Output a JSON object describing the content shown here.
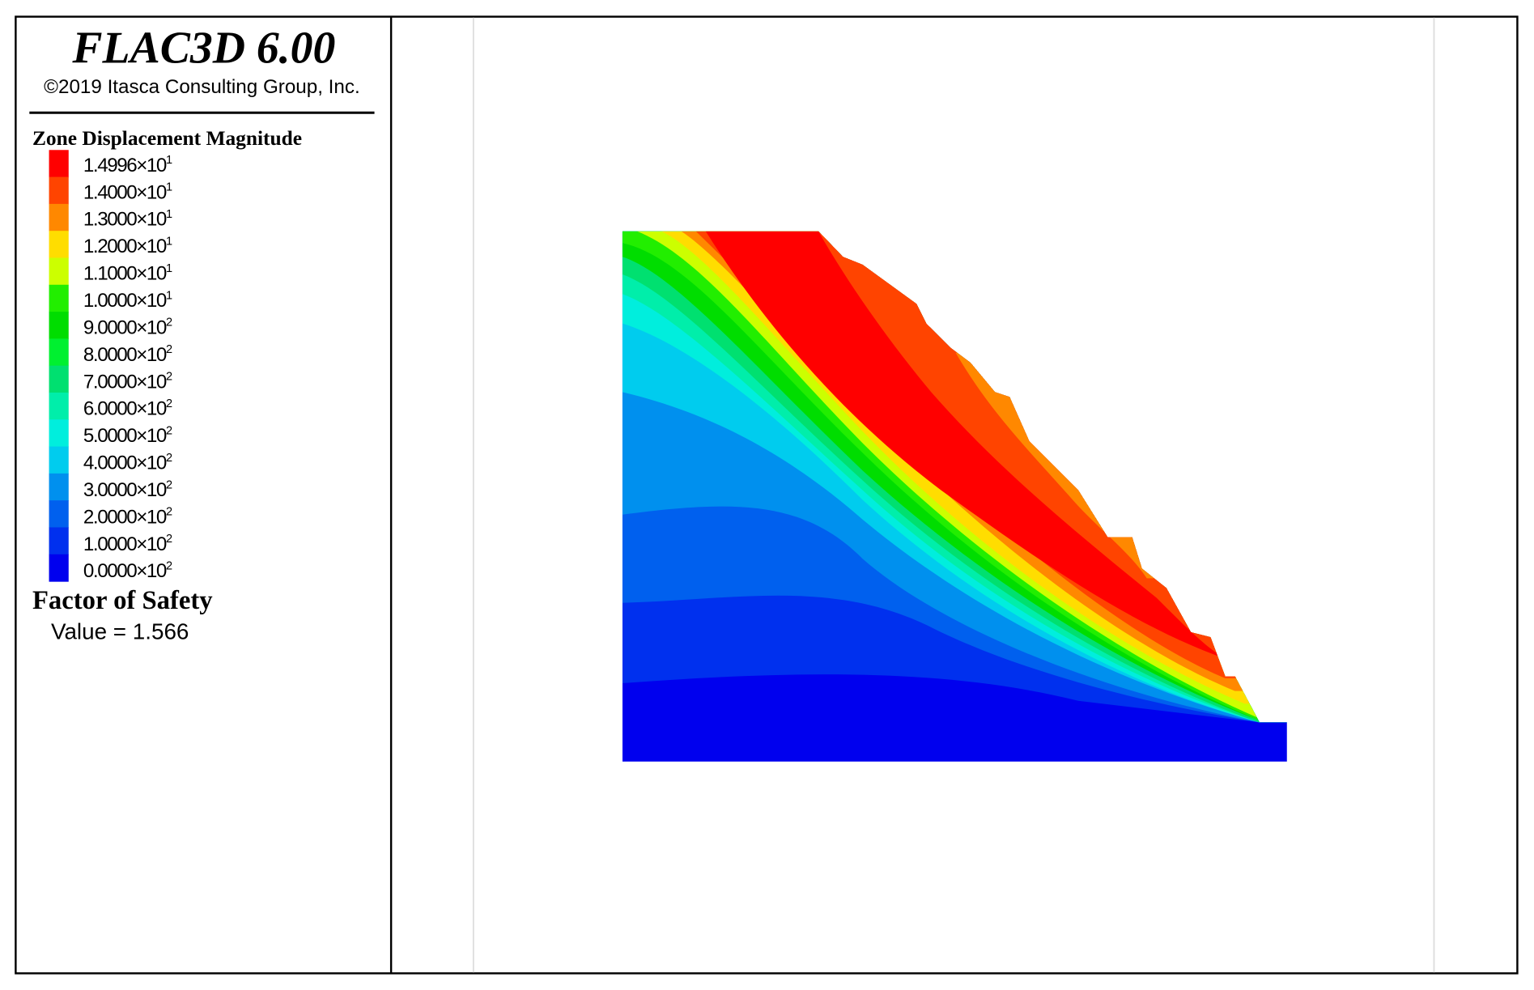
{
  "header": {
    "title": "FLAC3D 6.00",
    "copyright": "©2019 Itasca Consulting Group, Inc."
  },
  "legend": {
    "title": "Zone Displacement Magnitude",
    "items": [
      {
        "label": "1.4996×10",
        "exponent": "1",
        "color": "#ff0000"
      },
      {
        "label": "1.4000×10",
        "exponent": "1",
        "color": "#ff4400"
      },
      {
        "label": "1.3000×10",
        "exponent": "1",
        "color": "#ff8800"
      },
      {
        "label": "1.2000×10",
        "exponent": "1",
        "color": "#ffdd00"
      },
      {
        "label": "1.1000×10",
        "exponent": "1",
        "color": "#ccff00"
      },
      {
        "label": "1.0000×10",
        "exponent": "1",
        "color": "#22ee00"
      },
      {
        "label": "9.0000×10",
        "exponent": "2",
        "color": "#00dd00"
      },
      {
        "label": "8.0000×10",
        "exponent": "2",
        "color": "#00f030"
      },
      {
        "label": "7.0000×10",
        "exponent": "2",
        "color": "#00e070"
      },
      {
        "label": "6.0000×10",
        "exponent": "2",
        "color": "#00eeaa"
      },
      {
        "label": "5.0000×10",
        "exponent": "2",
        "color": "#00eedd"
      },
      {
        "label": "4.0000×10",
        "exponent": "2",
        "color": "#00ccee"
      },
      {
        "label": "3.0000×10",
        "exponent": "2",
        "color": "#0090ee"
      },
      {
        "label": "2.0000×10",
        "exponent": "2",
        "color": "#0060ee"
      },
      {
        "label": "1.0000×10",
        "exponent": "2",
        "color": "#0030ee"
      },
      {
        "label": "0.0000×10",
        "exponent": "2",
        "color": "#0000ee"
      }
    ]
  },
  "factor_of_safety": {
    "title": "Factor of Safety",
    "value": "Value = 1.566"
  }
}
